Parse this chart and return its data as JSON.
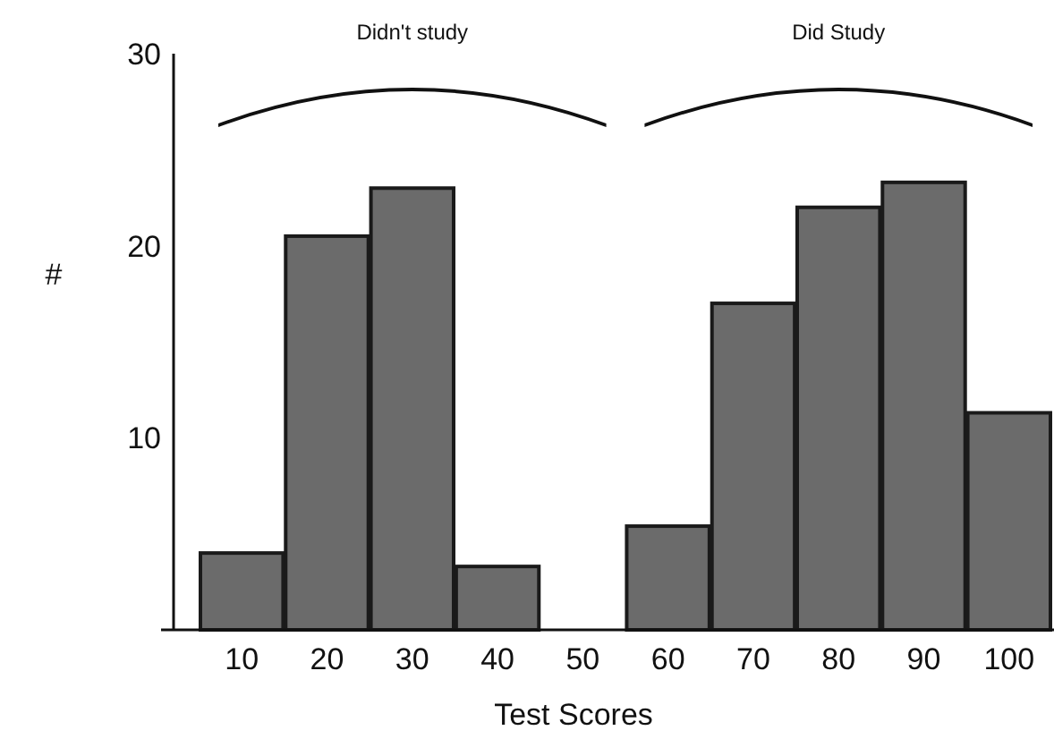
{
  "chart_data": {
    "type": "bar",
    "xlabel": "Test Scores",
    "ylabel": "#",
    "categories": [
      "10",
      "20",
      "30",
      "40",
      "50",
      "60",
      "70",
      "80",
      "90",
      "100"
    ],
    "values": [
      4,
      20.5,
      23,
      3.3,
      0,
      5.4,
      17,
      22,
      23.3,
      11.3
    ],
    "color": "#6b6b6b",
    "ylim": [
      0,
      30
    ],
    "yticks": [
      10,
      20,
      30
    ],
    "grid": false,
    "annotations": [
      "Didn't study",
      "Did Study"
    ]
  }
}
